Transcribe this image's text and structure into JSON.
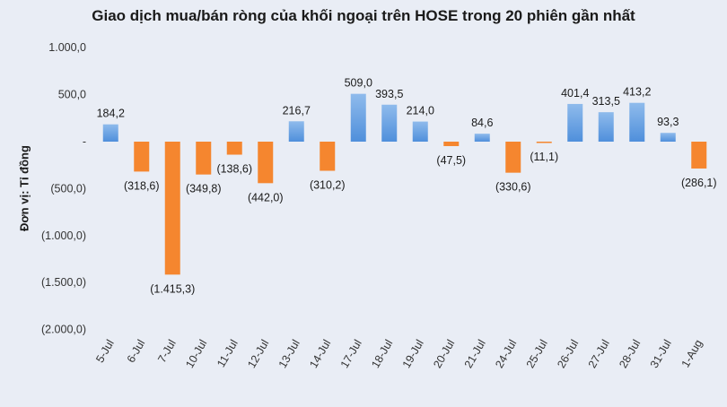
{
  "chart_data": {
    "type": "bar",
    "title": "Giao dịch mua/bán ròng của khối ngoại trên HOSE trong 20 phiên gần nhất",
    "ylabel": "Đơn vị: Tỉ đồng",
    "xlabel": "",
    "ylim": [
      -2000,
      1000
    ],
    "yticks": [
      1000,
      500,
      0,
      -500,
      -1000,
      -1500,
      -2000
    ],
    "ytick_labels": [
      "1.000,0",
      "500,0",
      "-",
      "(500,0)",
      "(1.000,0)",
      "(1.500,0)",
      "(2.000,0)"
    ],
    "categories": [
      "5-Jul",
      "6-Jul",
      "7-Jul",
      "10-Jul",
      "11-Jul",
      "12-Jul",
      "13-Jul",
      "14-Jul",
      "17-Jul",
      "18-Jul",
      "19-Jul",
      "20-Jul",
      "21-Jul",
      "24-Jul",
      "25-Jul",
      "26-Jul",
      "27-Jul",
      "28-Jul",
      "31-Jul",
      "1-Aug"
    ],
    "values": [
      184.2,
      -318.6,
      -1415.3,
      -349.8,
      -138.6,
      -442.0,
      216.7,
      -310.2,
      509.0,
      393.5,
      214.0,
      -47.5,
      84.6,
      -330.6,
      -11.1,
      401.4,
      313.5,
      413.2,
      93.3,
      -286.1
    ],
    "data_labels": [
      "184,2",
      "(318,6)",
      "(1.415,3)",
      "(349,8)",
      "(138,6)",
      "(442,0)",
      "216,7",
      "(310,2)",
      "509,0",
      "393,5",
      "214,0",
      "(47,5)",
      "84,6",
      "(330,6)",
      "(11,1)",
      "401,4",
      "313,5",
      "413,2",
      "93,3",
      "(286,1)"
    ],
    "colors": {
      "positive": "#4f8fdb",
      "positive_light": "#8fbbec",
      "negative": "#f5862f"
    },
    "grid": false,
    "legend": "none"
  }
}
